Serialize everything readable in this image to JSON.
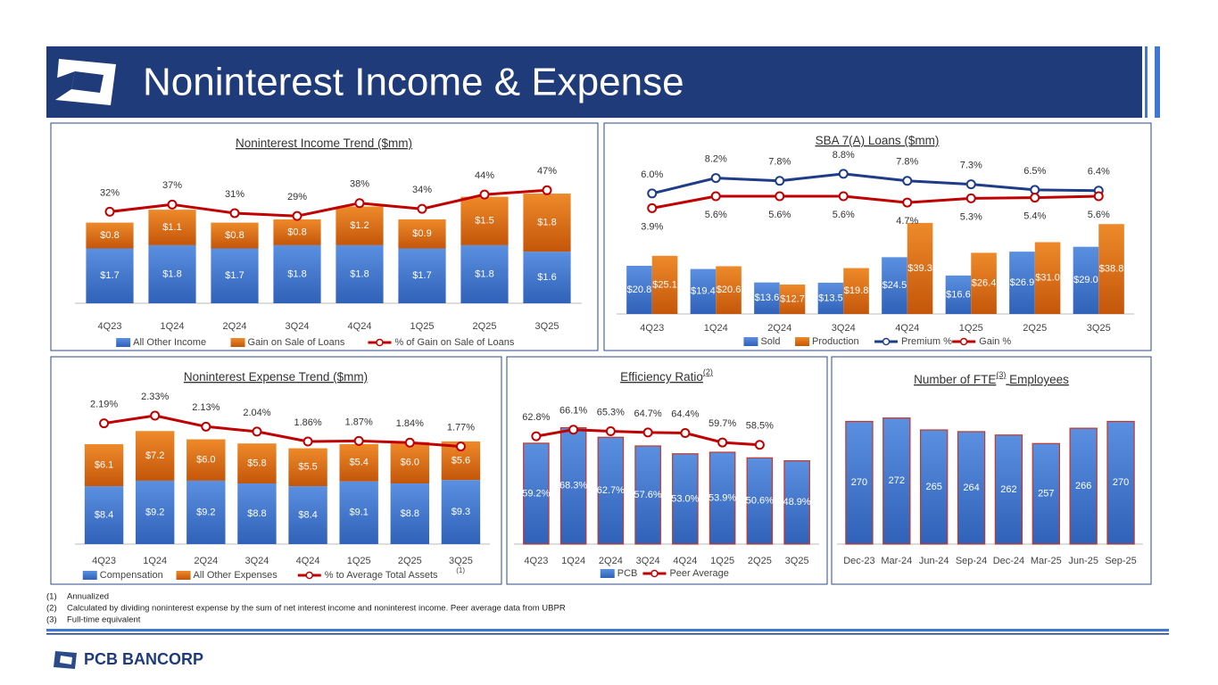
{
  "header": {
    "title": "Noninterest Income & Expense"
  },
  "footnotes": [
    {
      "mark": "(1)",
      "text": "Annualized"
    },
    {
      "mark": "(2)",
      "text": "Calculated by dividing noninterest expense by the sum of net interest income and noninterest income. Peer average data from UBPR"
    },
    {
      "mark": "(3)",
      "text": "Full-time equivalent"
    }
  ],
  "footer": {
    "logo_text": "PCB BANCORP"
  },
  "chart_data": [
    {
      "type": "bar",
      "mode": "stacked",
      "title": "Noninterest Income Trend ($mm)",
      "categories": [
        "4Q23",
        "1Q24",
        "2Q24",
        "3Q24",
        "4Q24",
        "1Q25",
        "2Q25",
        "3Q25"
      ],
      "ylim": [
        0,
        4.7
      ],
      "y2lim": [
        -32,
        74
      ],
      "series": [
        {
          "name": "All Other Income",
          "color": "#3f78d0",
          "values": [
            1.7,
            1.8,
            1.7,
            1.8,
            1.8,
            1.7,
            1.8,
            1.6
          ],
          "value_labels": [
            "$1.7",
            "$1.8",
            "$1.7",
            "$1.8",
            "$1.8",
            "$1.7",
            "$1.8",
            "$1.6"
          ]
        },
        {
          "name": "Gain on Sale of Loans",
          "color": "#d9690f",
          "values": [
            0.8,
            1.1,
            0.8,
            0.8,
            1.2,
            0.9,
            1.5,
            1.8
          ],
          "value_labels": [
            "$0.8",
            "$1.1",
            "$0.8",
            "$0.8",
            "$1.2",
            "$0.9",
            "$1.5",
            "$1.8"
          ]
        },
        {
          "name": "% of Gain on Sale of Loans",
          "type": "line",
          "axis": "y2",
          "color": "#c00000",
          "values": [
            32,
            37,
            31,
            29,
            38,
            34,
            44,
            47
          ],
          "value_labels": [
            "32%",
            "37%",
            "31%",
            "29%",
            "38%",
            "34%",
            "44%",
            "47%"
          ]
        }
      ]
    },
    {
      "type": "bar",
      "mode": "grouped",
      "title": "SBA 7(A) Loans ($mm)",
      "categories": [
        "4Q23",
        "1Q24",
        "2Q24",
        "3Q24",
        "4Q24",
        "1Q25",
        "2Q25",
        "3Q25"
      ],
      "ylim": [
        0,
        72
      ],
      "y2lim": [
        -11.2,
        12.6
      ],
      "series": [
        {
          "name": "Sold",
          "color": "#3f78d0",
          "values": [
            20.8,
            19.4,
            13.6,
            13.5,
            24.5,
            16.6,
            26.9,
            29.0
          ],
          "value_labels": [
            "$20.8",
            "$19.4",
            "$13.6",
            "$13.5",
            "$24.5",
            "$16.6",
            "$26.9",
            "$29.0"
          ]
        },
        {
          "name": "Production",
          "color": "#d9690f",
          "values": [
            25.1,
            20.6,
            12.7,
            19.8,
            39.3,
            26.4,
            31.0,
            38.8
          ],
          "value_labels": [
            "$25.1",
            "$20.6",
            "$12.7",
            "$19.8",
            "$39.3",
            "$26.4",
            "$31.0",
            "$38.8"
          ]
        },
        {
          "name": "Premium %",
          "type": "line",
          "axis": "y2",
          "color": "#1f3c88",
          "values": [
            6.0,
            8.2,
            7.8,
            8.8,
            7.8,
            7.3,
            6.5,
            6.4
          ],
          "value_labels": [
            "6.0%",
            "8.2%",
            "7.8%",
            "8.8%",
            "7.8%",
            "7.3%",
            "6.5%",
            "6.4%"
          ]
        },
        {
          "name": "Gain %",
          "type": "line",
          "axis": "y2",
          "color": "#c00000",
          "values": [
            3.9,
            5.6,
            5.6,
            5.6,
            4.7,
            5.3,
            5.4,
            5.6
          ],
          "value_labels": [
            "3.9%",
            "5.6%",
            "5.6%",
            "5.6%",
            "4.7%",
            "5.3%",
            "5.4%",
            "5.6%"
          ]
        }
      ]
    },
    {
      "type": "bar",
      "mode": "stacked",
      "title": "Noninterest Expense Trend ($mm)",
      "legend_note": "(1)",
      "categories": [
        "4Q23",
        "1Q24",
        "2Q24",
        "3Q24",
        "4Q24",
        "1Q25",
        "2Q25",
        "3Q25"
      ],
      "ylim": [
        0,
        22
      ],
      "y2lim": [
        0,
        2.75
      ],
      "series": [
        {
          "name": "Compensation",
          "color": "#3f78d0",
          "values": [
            8.4,
            9.2,
            9.2,
            8.8,
            8.4,
            9.1,
            8.8,
            9.3
          ],
          "value_labels": [
            "$8.4",
            "$9.2",
            "$9.2",
            "$8.8",
            "$8.4",
            "$9.1",
            "$8.8",
            "$9.3"
          ]
        },
        {
          "name": "All Other Expenses",
          "color": "#d9690f",
          "values": [
            6.1,
            7.2,
            6.0,
            5.8,
            5.5,
            5.4,
            6.0,
            5.6
          ],
          "value_labels": [
            "$6.1",
            "$7.2",
            "$6.0",
            "$5.8",
            "$5.5",
            "$5.4",
            "$6.0",
            "$5.6"
          ]
        },
        {
          "name": "% to Average Total Assets",
          "type": "line",
          "axis": "y2",
          "color": "#c00000",
          "values": [
            2.19,
            2.33,
            2.13,
            2.04,
            1.86,
            1.87,
            1.84,
            1.77
          ],
          "value_labels": [
            "2.19%",
            "2.33%",
            "2.13%",
            "2.04%",
            "1.86%",
            "1.87%",
            "1.84%",
            "1.77%"
          ]
        }
      ]
    },
    {
      "type": "bar",
      "mode": "stacked",
      "title": "Efficiency Ratio",
      "title_note": "(2)",
      "categories": [
        "4Q23",
        "1Q24",
        "2Q24",
        "3Q24",
        "4Q24",
        "1Q25",
        "2Q25",
        "3Q25"
      ],
      "ylim": [
        0,
        89
      ],
      "y2lim": [
        8.9,
        84.7
      ],
      "series": [
        {
          "name": "PCB",
          "color": "#3f78d0",
          "values": [
            59.2,
            68.3,
            62.7,
            57.6,
            53.0,
            53.9,
            50.6,
            48.9
          ],
          "value_labels": [
            "59.2%",
            "68.3%",
            "62.7%",
            "57.6%",
            "53.0%",
            "53.9%",
            "50.6%",
            "48.9%"
          ]
        },
        {
          "name": "Peer Average",
          "type": "line",
          "axis": "y2",
          "color": "#c00000",
          "values": [
            62.8,
            66.1,
            65.3,
            64.7,
            64.4,
            59.7,
            58.5,
            null
          ],
          "value_labels": [
            "62.8%",
            "66.1%",
            "65.3%",
            "64.7%",
            "64.4%",
            "59.7%",
            "58.5%",
            null
          ]
        }
      ]
    },
    {
      "type": "bar",
      "mode": "stacked",
      "title": "Number of FTE",
      "title_note": "(3)",
      "title_suffix": "Employees",
      "categories": [
        "Dec-23",
        "Mar-24",
        "Jun-24",
        "Sep-24",
        "Dec-24",
        "Mar-25",
        "Jun-25",
        "Sep-25"
      ],
      "ylim": [
        198,
        287
      ],
      "legend": false,
      "series": [
        {
          "color": "#3f78d0",
          "values": [
            270,
            272,
            265,
            264,
            262,
            257,
            266,
            270
          ]
        }
      ]
    }
  ]
}
